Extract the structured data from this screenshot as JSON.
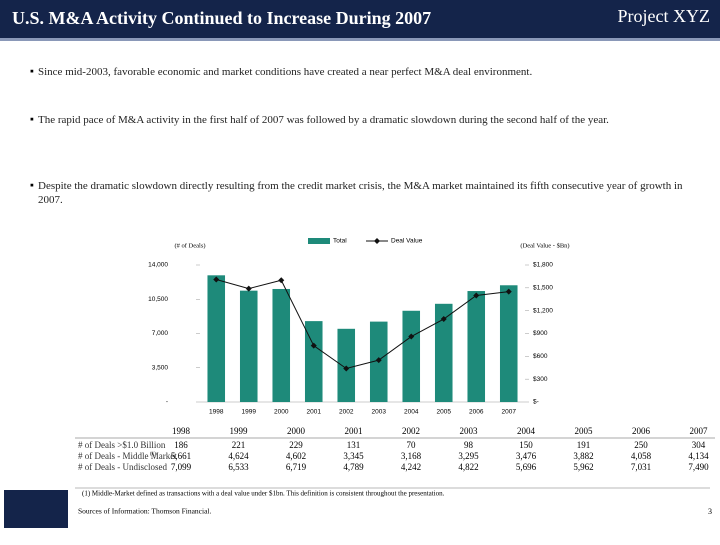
{
  "header": {
    "title": "U.S. M&A Activity Continued to Increase During 2007",
    "project": "Project XYZ"
  },
  "bullets": [
    "Since mid-2003, favorable economic and market conditions have created a near perfect M&A deal environment.",
    "The rapid pace of M&A activity in the first half of 2007 was followed by a dramatic slowdown during the second half of the year.",
    "Despite the dramatic slowdown directly resulting from the credit market crisis, the M&A market maintained its fifth consecutive year of growth in 2007."
  ],
  "chart_data": {
    "type": "bar-line",
    "y_label": "(# of Deals)",
    "y2_label": "(Deal Value - $Bn)",
    "categories": [
      "1998",
      "1999",
      "2000",
      "2001",
      "2002",
      "2003",
      "2004",
      "2005",
      "2006",
      "2007"
    ],
    "series": [
      {
        "name": "Total",
        "color": "#1e8a7a",
        "type": "bar",
        "values": [
          12946,
          11378,
          11550,
          8265,
          7480,
          8215,
          9322,
          10035,
          11339,
          11928
        ]
      },
      {
        "name": "Deal Value",
        "color": "#111111",
        "type": "line",
        "axis": "y2",
        "values": [
          1610,
          1490,
          1600,
          740,
          440,
          550,
          860,
          1090,
          1400,
          1450
        ]
      }
    ],
    "ylim": [
      0,
      14000
    ],
    "yticks": [
      {
        "value": 0,
        "label": "-"
      },
      {
        "value": 3500,
        "label": "3,500"
      },
      {
        "value": 7000,
        "label": "7,000"
      },
      {
        "value": 10500,
        "label": "10,500"
      },
      {
        "value": 14000,
        "label": "14,000"
      }
    ],
    "y2lim": [
      0,
      1800
    ],
    "y2ticks": [
      {
        "value": 0,
        "label": "$-"
      },
      {
        "value": 300,
        "label": "$300"
      },
      {
        "value": 600,
        "label": "$600"
      },
      {
        "value": 900,
        "label": "$900"
      },
      {
        "value": 1200,
        "label": "$1,200"
      },
      {
        "value": 1500,
        "label": "$1,500"
      },
      {
        "value": 1800,
        "label": "$1,800"
      }
    ]
  },
  "table": {
    "header": [
      "1998",
      "1999",
      "2000",
      "2001",
      "2002",
      "2003",
      "2004",
      "2005",
      "2006",
      "2007"
    ],
    "rows": [
      {
        "label": "# of Deals >$1.0 Billion",
        "cells": [
          "186",
          "221",
          "229",
          "131",
          "70",
          "98",
          "150",
          "191",
          "250",
          "304"
        ]
      },
      {
        "label": "# of Deals - Middle Market",
        "note": "(1)",
        "cells": [
          "5,661",
          "4,624",
          "4,602",
          "3,345",
          "3,168",
          "3,295",
          "3,476",
          "3,882",
          "4,058",
          "4,134"
        ]
      },
      {
        "label": "# of Deals - Undisclosed",
        "cells": [
          "7,099",
          "6,533",
          "6,719",
          "4,789",
          "4,242",
          "4,822",
          "5,696",
          "5,962",
          "7,031",
          "7,490"
        ]
      }
    ]
  },
  "footnote": "(1)  Middle-Market defined as transactions with a deal value under $1bn.  This definition is consistent throughout the presentation.",
  "sources": "Sources of Information:  Thomson Financial.",
  "page_number": "3"
}
